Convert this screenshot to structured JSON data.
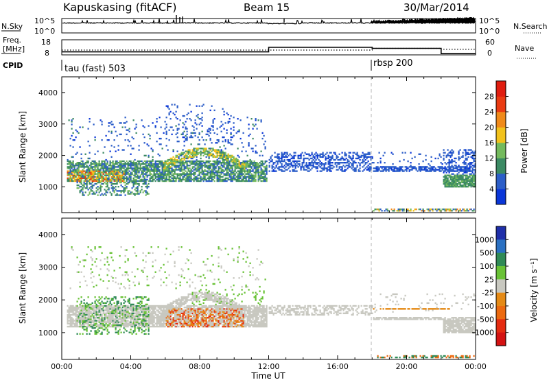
{
  "header": {
    "station": "Kapuskasing (fitACF)",
    "beam": "Beam 15",
    "date": "30/Mar/2014"
  },
  "colors": {
    "frame": "#000000",
    "dashed_divider": "#b4b4b4"
  },
  "chart_data": [
    {
      "type": "line",
      "title": "N.Sky / N.Search",
      "ylabel_left": "N.Sky",
      "ylabel_right": "N.Search",
      "left_ticks": [
        "10^5",
        "10^0"
      ],
      "right_ticks": [
        "10^5",
        "10^0"
      ],
      "note": "black trace ~10^4 with dense upper band after 20:00"
    },
    {
      "type": "line",
      "ylabel_left": "Freq. [MHz]",
      "ylabel_right": "Nave",
      "left_ticks": [
        "18",
        "8"
      ],
      "right_ticks": [
        "60",
        "0"
      ],
      "series": [
        {
          "name": "Freq.",
          "style": "solid",
          "x": [
            0,
            12,
            12,
            18,
            18,
            22,
            22,
            24
          ],
          "y": [
            10,
            10,
            13,
            13,
            12.3,
            12.3,
            8.8,
            8.8
          ]
        },
        {
          "name": "Nave",
          "style": "dotted",
          "x": [
            0,
            12,
            18,
            18,
            22,
            22,
            24
          ],
          "y": [
            19,
            19,
            19,
            26,
            26,
            22,
            22
          ]
        }
      ]
    },
    {
      "type": "table",
      "ylabel_left": "CPID",
      "labels": [
        {
          "text": "tau (fast) 503",
          "x": 0
        },
        {
          "text": "rbsp 200",
          "x": 18
        }
      ]
    },
    {
      "type": "heatmap",
      "parameter": "Power",
      "ylabel": "Slant Range [km]",
      "yticks": [
        1000,
        2000,
        3000,
        4000
      ],
      "xticks": [
        "00:00",
        "04:00",
        "08:00",
        "12:00",
        "16:00",
        "20:00",
        "00:00"
      ],
      "ylim": [
        180,
        4500
      ],
      "xlim": [
        0,
        24
      ],
      "colorbar": {
        "label": "Power [dB]",
        "ticks": [
          "4",
          "8",
          "12",
          "16",
          "20",
          "24",
          "28"
        ],
        "colors": [
          "#0a36d8",
          "#2c5ec8",
          "#3b8a63",
          "#74ba5d",
          "#f2c21c",
          "#f08a1a",
          "#ea3b12",
          "#e01d10"
        ]
      },
      "features": [
        {
          "desc": "main band",
          "x": [
            0.3,
            11.8
          ],
          "range_km": [
            1200,
            1800
          ],
          "level_db": 10
        },
        {
          "desc": "arc",
          "x": [
            6.0,
            10.5
          ],
          "range_km": [
            1500,
            2200
          ],
          "level_db": 16
        },
        {
          "desc": "intense",
          "x": [
            0.3,
            3.5
          ],
          "range_km": [
            1100,
            1500
          ],
          "level_db": 24
        },
        {
          "desc": "post 12 UT band",
          "x": [
            12,
            18
          ],
          "range_km": [
            1450,
            2100
          ],
          "level_db": 6
        },
        {
          "desc": "rbsp band",
          "x": [
            18,
            24
          ],
          "range_km": [
            1450,
            1600
          ],
          "level_db": 6
        },
        {
          "desc": "late block",
          "x": [
            22.1,
            24
          ],
          "range_km": [
            950,
            1350
          ],
          "level_db": 11
        }
      ]
    },
    {
      "type": "heatmap",
      "parameter": "Velocity",
      "ylabel": "Slant Range [km]",
      "yticks": [
        1000,
        2000,
        3000,
        4000
      ],
      "xticks": [
        "00:00",
        "04:00",
        "08:00",
        "12:00",
        "16:00",
        "20:00",
        "00:00"
      ],
      "xlabel": "Time UT",
      "ylim": [
        180,
        4500
      ],
      "xlim": [
        0,
        24
      ],
      "colorbar": {
        "label": "Velocity [m s⁻¹]",
        "ticks": [
          "1000",
          "500",
          "100",
          "25",
          "-25",
          "-100",
          "-500",
          "-1000"
        ],
        "colors": [
          "#1f2fa9",
          "#2a70c2",
          "#2f8a56",
          "#69c236",
          "#c8c8c0",
          "#e58a16",
          "#ec6a10",
          "#e52b10",
          "#d41212"
        ]
      },
      "features": [
        {
          "desc": "ground scatter band",
          "x": [
            0.3,
            24
          ],
          "range_km": [
            1200,
            1800
          ],
          "velocity_ms": 0
        },
        {
          "desc": "green patches",
          "x": [
            0.8,
            5.0
          ],
          "range_km": [
            1200,
            2100
          ],
          "velocity_ms": 200
        },
        {
          "desc": "orange patch",
          "x": [
            6.0,
            10.5
          ],
          "range_km": [
            1200,
            1750
          ],
          "velocity_ms": -250
        },
        {
          "desc": "orange line rbsp",
          "x": [
            18,
            22.5
          ],
          "range_km": [
            1680,
            1720
          ],
          "velocity_ms": -200
        }
      ]
    }
  ]
}
